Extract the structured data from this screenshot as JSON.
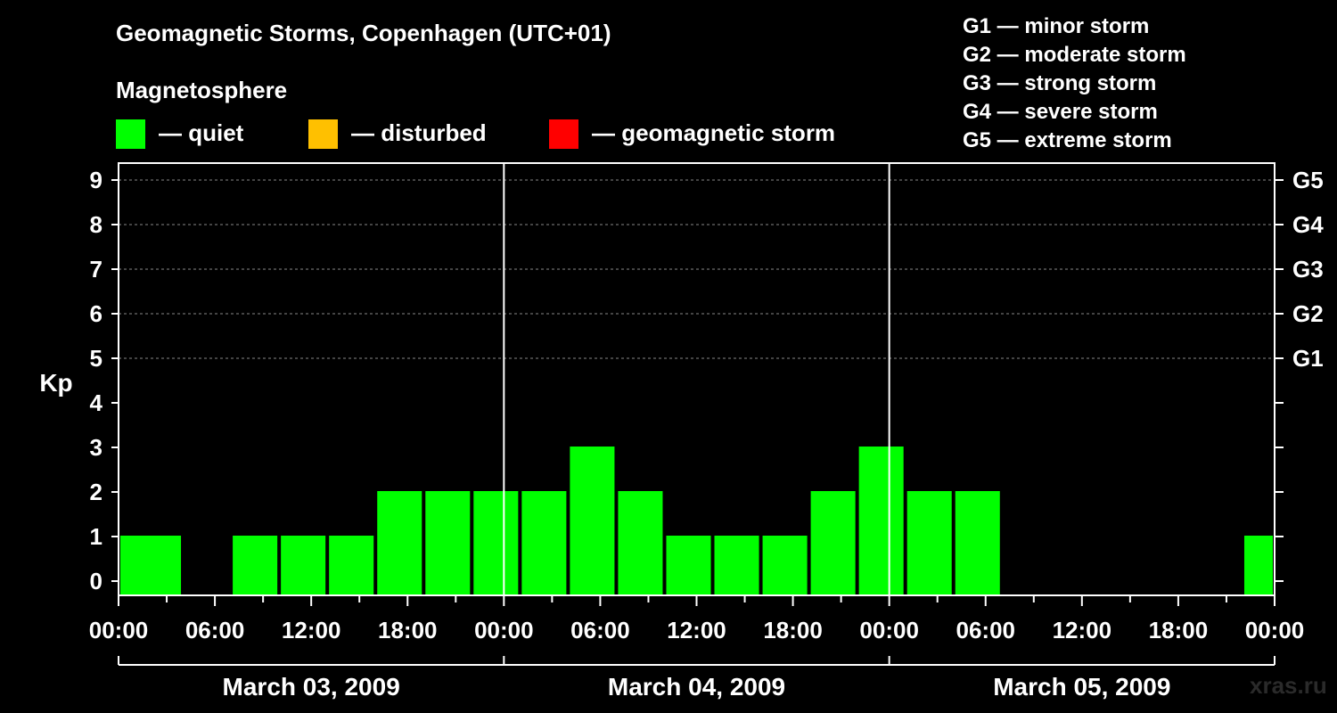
{
  "chart_data": {
    "type": "bar",
    "title": "Geomagnetic Storms, Copenhagen (UTC+01)",
    "ylabel": "Kp",
    "ylim": [
      0,
      9
    ],
    "yticks": [
      "0",
      "1",
      "2",
      "3",
      "4",
      "5",
      "6",
      "7",
      "8",
      "9"
    ],
    "right_axis": [
      {
        "kp": 5,
        "label": "G1"
      },
      {
        "kp": 6,
        "label": "G2"
      },
      {
        "kp": 7,
        "label": "G3"
      },
      {
        "kp": 8,
        "label": "G4"
      },
      {
        "kp": 9,
        "label": "G5"
      }
    ],
    "x_tick_labels": [
      "00:00",
      "06:00",
      "12:00",
      "18:00",
      "00:00",
      "06:00",
      "12:00",
      "18:00",
      "00:00",
      "06:00",
      "12:00",
      "18:00",
      "00:00"
    ],
    "dates": [
      "March 03, 2009",
      "March 04, 2009",
      "March 05, 2009"
    ],
    "bar_hours": 3,
    "bars": [
      {
        "start_hour": 0,
        "value": 1
      },
      {
        "start_hour": 1,
        "value": 1
      },
      {
        "start_hour": 4,
        "value": 0
      },
      {
        "start_hour": 7,
        "value": 1
      },
      {
        "start_hour": 10,
        "value": 1
      },
      {
        "start_hour": 13,
        "value": 1
      },
      {
        "start_hour": 16,
        "value": 2
      },
      {
        "start_hour": 19,
        "value": 2
      },
      {
        "start_hour": 22,
        "value": 2
      },
      {
        "start_hour": 25,
        "value": 2
      },
      {
        "start_hour": 28,
        "value": 3
      },
      {
        "start_hour": 31,
        "value": 2
      },
      {
        "start_hour": 34,
        "value": 1
      },
      {
        "start_hour": 37,
        "value": 1
      },
      {
        "start_hour": 40,
        "value": 1
      },
      {
        "start_hour": 43,
        "value": 2
      },
      {
        "start_hour": 46,
        "value": 3
      },
      {
        "start_hour": 49,
        "value": 2
      },
      {
        "start_hour": 52,
        "value": 2
      },
      {
        "start_hour": 70,
        "value": 1
      }
    ],
    "grid": "dashed at Kp 5-9",
    "colors": {
      "quiet": "#00ff00",
      "disturbed": "#ffc000",
      "storm": "#ff0000"
    }
  },
  "legend": {
    "heading": "Magnetosphere",
    "items": [
      {
        "label": "— quiet",
        "color": "#00ff00"
      },
      {
        "label": "— disturbed",
        "color": "#ffc000"
      },
      {
        "label": "— geomagnetic storm",
        "color": "#ff0000"
      }
    ]
  },
  "g_scale": [
    "G1 — minor storm",
    "G2 — moderate storm",
    "G3 — strong storm",
    "G4 — severe storm",
    "G5 — extreme storm"
  ],
  "watermark": "xras.ru"
}
